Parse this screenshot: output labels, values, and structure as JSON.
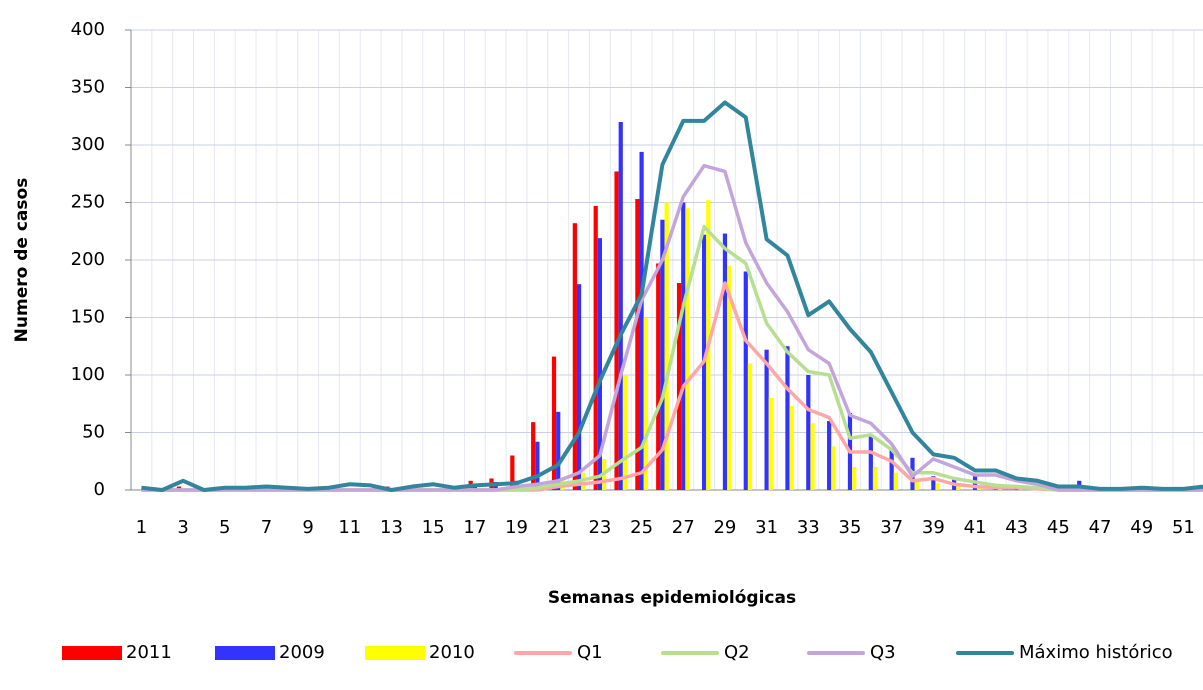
{
  "chart_data": {
    "type": "bar",
    "x_label": "Semanas epidemiológicas",
    "y_label": "Numero de casos",
    "categories": [
      1,
      null,
      3,
      null,
      5,
      null,
      7,
      null,
      9,
      null,
      11,
      null,
      13,
      null,
      15,
      null,
      17,
      null,
      19,
      null,
      21,
      null,
      23,
      null,
      25,
      null,
      27,
      null,
      29,
      null,
      31,
      null,
      33,
      null,
      35,
      null,
      37,
      null,
      39,
      null,
      41,
      null,
      43,
      null,
      45,
      null,
      47,
      null,
      49,
      null,
      51,
      null
    ],
    "ylim": [
      0,
      400
    ],
    "yticks": [
      0,
      50,
      100,
      150,
      200,
      250,
      300,
      350,
      400
    ],
    "grid": true,
    "series": [
      {
        "name": "2011",
        "type": "bar",
        "color": "#ff0000",
        "values": [
          0,
          0,
          3,
          0,
          0,
          0,
          0,
          0,
          0,
          0,
          0,
          0,
          3,
          0,
          0,
          0,
          8,
          10,
          30,
          59,
          116,
          232,
          247,
          277,
          253,
          197,
          180,
          null,
          null,
          null,
          null,
          null,
          null,
          null,
          null,
          null,
          null,
          null,
          null,
          null,
          null,
          null,
          null,
          null,
          null,
          null,
          null,
          null,
          null,
          null,
          null,
          null
        ]
      },
      {
        "name": "2009",
        "type": "bar",
        "color": "#3333ff",
        "values": [
          0,
          0,
          0,
          0,
          0,
          0,
          0,
          0,
          0,
          0,
          0,
          0,
          0,
          0,
          0,
          0,
          5,
          7,
          8,
          42,
          68,
          179,
          219,
          320,
          294,
          235,
          250,
          222,
          223,
          190,
          122,
          125,
          100,
          60,
          67,
          48,
          35,
          28,
          12,
          10,
          12,
          3,
          2,
          2,
          1,
          8,
          0,
          0,
          0,
          0,
          0,
          0
        ]
      },
      {
        "name": "2010",
        "type": "bar",
        "color": "#ffff00",
        "values": [
          0,
          0,
          0,
          0,
          0,
          0,
          0,
          0,
          0,
          0,
          0,
          0,
          0,
          0,
          0,
          0,
          0,
          2,
          3,
          5,
          10,
          15,
          27,
          100,
          150,
          250,
          245,
          252,
          195,
          110,
          80,
          73,
          58,
          38,
          20,
          20,
          15,
          8,
          6,
          5,
          3,
          2,
          2,
          1,
          0,
          0,
          0,
          0,
          0,
          0,
          0,
          0
        ]
      },
      {
        "name": "Q1",
        "type": "line",
        "color": "#ffa7a7",
        "values": [
          0,
          0,
          0,
          0,
          0,
          0,
          0,
          0,
          0,
          0,
          0,
          0,
          0,
          0,
          0,
          0,
          0,
          0,
          0,
          0,
          3,
          5,
          7,
          10,
          15,
          35,
          90,
          112,
          180,
          130,
          110,
          88,
          70,
          63,
          33,
          33,
          25,
          8,
          10,
          5,
          3,
          2,
          2,
          1,
          0,
          0,
          0,
          0,
          0,
          0,
          0,
          0
        ]
      },
      {
        "name": "Q2",
        "type": "line",
        "color": "#b6e08f",
        "values": [
          0,
          0,
          0,
          0,
          0,
          0,
          0,
          0,
          0,
          0,
          0,
          0,
          0,
          0,
          0,
          0,
          0,
          0,
          0,
          2,
          5,
          8,
          12,
          25,
          37,
          80,
          160,
          229,
          210,
          197,
          145,
          120,
          103,
          100,
          45,
          48,
          35,
          15,
          15,
          10,
          7,
          4,
          3,
          2,
          0,
          0,
          0,
          0,
          0,
          0,
          0,
          0
        ]
      },
      {
        "name": "Q3",
        "type": "line",
        "color": "#c3a5dc",
        "values": [
          0,
          0,
          0,
          0,
          0,
          0,
          0,
          0,
          0,
          0,
          0,
          0,
          0,
          0,
          0,
          0,
          0,
          0,
          3,
          5,
          8,
          15,
          30,
          100,
          165,
          200,
          255,
          282,
          277,
          215,
          180,
          155,
          122,
          110,
          65,
          58,
          40,
          12,
          27,
          20,
          13,
          13,
          8,
          5,
          0,
          0,
          0,
          0,
          0,
          0,
          0,
          0
        ]
      },
      {
        "name": "Máximo histórico",
        "type": "line",
        "color": "#31859c",
        "values": [
          2,
          0,
          8,
          0,
          2,
          2,
          3,
          2,
          1,
          2,
          5,
          4,
          0,
          3,
          5,
          2,
          4,
          5,
          6,
          12,
          22,
          50,
          95,
          135,
          170,
          283,
          321,
          321,
          337,
          324,
          218,
          204,
          152,
          164,
          140,
          120,
          85,
          50,
          31,
          28,
          17,
          17,
          10,
          8,
          3,
          3,
          1,
          1,
          2,
          1,
          1,
          3
        ]
      }
    ]
  }
}
